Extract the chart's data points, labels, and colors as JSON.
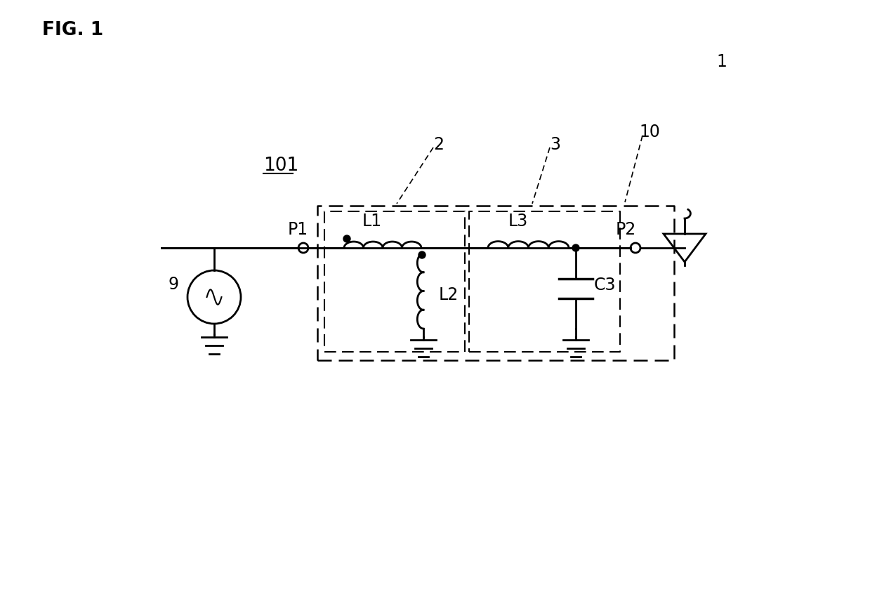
{
  "background_color": "#ffffff",
  "line_color": "#000000",
  "labels": {
    "fig": "FIG. 1",
    "label_101": "101",
    "label_2": "2",
    "label_3": "3",
    "label_10": "10",
    "label_1": "1",
    "label_9": "9",
    "label_P1": "P1",
    "label_P2": "P2",
    "label_L1": "L1",
    "label_L2": "L2",
    "label_L3": "L3",
    "label_C3": "C3"
  }
}
